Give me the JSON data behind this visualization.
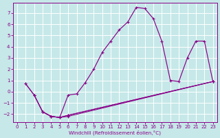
{
  "background_color": "#c6e8e8",
  "line_color": "#880088",
  "xlabel": "Windchill (Refroidissement éolien,°C)",
  "x_ticks": [
    0,
    1,
    2,
    3,
    4,
    5,
    6,
    7,
    8,
    9,
    10,
    11,
    12,
    13,
    14,
    15,
    16,
    17,
    18,
    19,
    20,
    21,
    22,
    23
  ],
  "y_ticks": [
    -2,
    -1,
    0,
    1,
    2,
    3,
    4,
    5,
    6,
    7
  ],
  "xlim": [
    -0.5,
    23.5
  ],
  "ylim": [
    -2.7,
    7.9
  ],
  "main_x": [
    1,
    2,
    3,
    4,
    5,
    6,
    7,
    8,
    9,
    10,
    11,
    12,
    13,
    14,
    15,
    16,
    17,
    18,
    19,
    20,
    21,
    22,
    23
  ],
  "main_y": [
    0.7,
    -0.3,
    -1.8,
    -2.2,
    -2.3,
    -0.3,
    -0.2,
    0.8,
    2.0,
    3.5,
    4.5,
    5.5,
    6.2,
    7.5,
    7.4,
    6.5,
    4.5,
    1.0,
    0.9,
    3.0,
    4.5,
    4.5,
    0.9
  ],
  "tline1_x": [
    1,
    2,
    3,
    4,
    5,
    6,
    23
  ],
  "tline1_y": [
    0.7,
    -0.3,
    -1.8,
    -2.2,
    -2.3,
    -2.2,
    0.9
  ],
  "tline2_x": [
    2,
    3,
    4,
    5,
    6,
    23
  ],
  "tline2_y": [
    -0.3,
    -1.8,
    -2.2,
    -2.3,
    -2.1,
    0.9
  ],
  "tline3_x": [
    3,
    4,
    5,
    6,
    23
  ],
  "tline3_y": [
    -1.8,
    -2.2,
    -2.3,
    -2.1,
    0.9
  ]
}
